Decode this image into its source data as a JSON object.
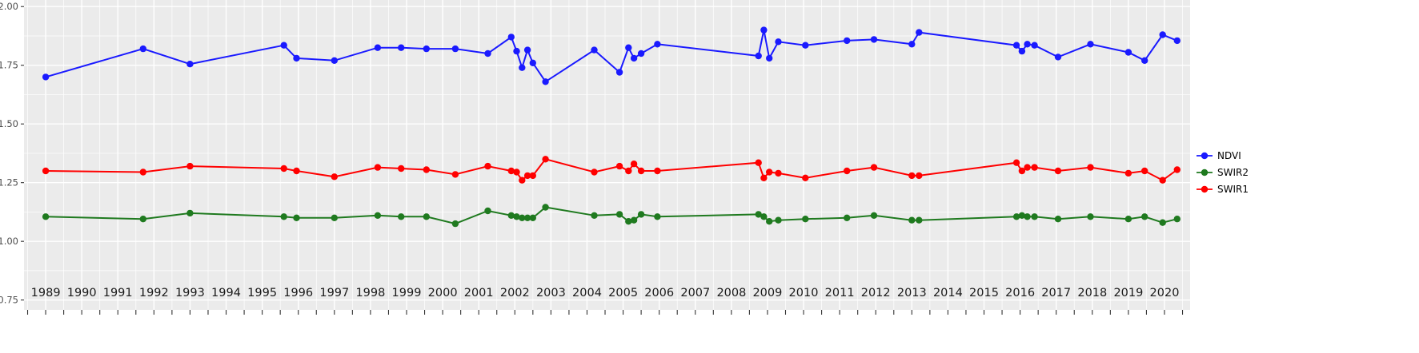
{
  "chart_data": {
    "type": "line",
    "title": "",
    "xlabel": "",
    "ylabel": "",
    "xlim": [
      1988.4,
      2020.71
    ],
    "ylim": [
      0.708,
      2.028
    ],
    "x_ticks": [
      1989,
      1990,
      1991,
      1992,
      1993,
      1994,
      1995,
      1996,
      1997,
      1998,
      1999,
      2000,
      2001,
      2002,
      2003,
      2004,
      2005,
      2006,
      2007,
      2008,
      2009,
      2010,
      2011,
      2012,
      2013,
      2014,
      2015,
      2016,
      2017,
      2018,
      2019,
      2020
    ],
    "y_ticks": [
      2.0,
      1.75,
      1.5,
      1.25,
      1.0,
      0.75
    ],
    "y_tick_labels": [
      "2.00",
      "1.75",
      "1.50",
      "1.25",
      "1.00",
      "0.75"
    ],
    "y_minor": [
      0.875,
      1.125,
      1.375,
      1.625,
      1.875
    ],
    "grid": true,
    "legend_position": "right",
    "panel_bg": "#EBEBEB",
    "grid_color": "#FFFFFF",
    "tick_color": "#333333",
    "x_label_color": "#1A1A1A",
    "y_label_color": "#4D4D4D",
    "x": [
      1989.0,
      1991.7,
      1993.0,
      1995.6,
      1995.95,
      1997.0,
      1998.2,
      1998.85,
      1999.55,
      2000.35,
      2001.25,
      2001.9,
      2002.05,
      2002.2,
      2002.35,
      2002.5,
      2002.85,
      2004.2,
      2004.9,
      2005.15,
      2005.3,
      2005.5,
      2005.95,
      2008.75,
      2008.9,
      2009.05,
      2009.3,
      2010.05,
      2011.2,
      2011.95,
      2013.0,
      2013.2,
      2015.9,
      2016.05,
      2016.2,
      2016.4,
      2017.05,
      2017.95,
      2019.0,
      2019.45,
      2019.95,
      2020.35
    ],
    "series": [
      {
        "name": "NDVI",
        "color": "#1A1AFF",
        "values": [
          1.7,
          1.82,
          1.755,
          1.835,
          1.78,
          1.77,
          1.825,
          1.825,
          1.82,
          1.82,
          1.8,
          1.87,
          1.81,
          1.74,
          1.815,
          1.76,
          1.68,
          1.815,
          1.72,
          1.825,
          1.78,
          1.8,
          1.84,
          1.79,
          1.9,
          1.78,
          1.85,
          1.835,
          1.855,
          1.86,
          1.84,
          1.89,
          1.835,
          1.81,
          1.84,
          1.835,
          1.785,
          1.84,
          1.805,
          1.77,
          1.88,
          1.855
        ]
      },
      {
        "name": "SWIR2",
        "color": "#1F7A1F",
        "values": [
          1.105,
          1.095,
          1.12,
          1.105,
          1.1,
          1.1,
          1.11,
          1.105,
          1.105,
          1.075,
          1.13,
          1.11,
          1.105,
          1.1,
          1.1,
          1.1,
          1.145,
          1.11,
          1.115,
          1.085,
          1.09,
          1.115,
          1.105,
          1.115,
          1.105,
          1.085,
          1.09,
          1.095,
          1.1,
          1.11,
          1.09,
          1.09,
          1.105,
          1.11,
          1.105,
          1.105,
          1.095,
          1.105,
          1.095,
          1.105,
          1.08,
          1.095
        ]
      },
      {
        "name": "SWIR1",
        "color": "#FF0000",
        "values": [
          1.3,
          1.295,
          1.32,
          1.31,
          1.3,
          1.275,
          1.315,
          1.31,
          1.305,
          1.285,
          1.32,
          1.3,
          1.295,
          1.26,
          1.28,
          1.28,
          1.35,
          1.295,
          1.32,
          1.3,
          1.33,
          1.3,
          1.3,
          1.335,
          1.27,
          1.295,
          1.29,
          1.27,
          1.3,
          1.315,
          1.28,
          1.28,
          1.335,
          1.3,
          1.315,
          1.315,
          1.3,
          1.315,
          1.29,
          1.3,
          1.26,
          1.305
        ]
      }
    ]
  },
  "legend": {
    "items": [
      {
        "label": "NDVI",
        "color": "#1A1AFF"
      },
      {
        "label": "SWIR2",
        "color": "#1F7A1F"
      },
      {
        "label": "SWIR1",
        "color": "#FF0000"
      }
    ]
  }
}
